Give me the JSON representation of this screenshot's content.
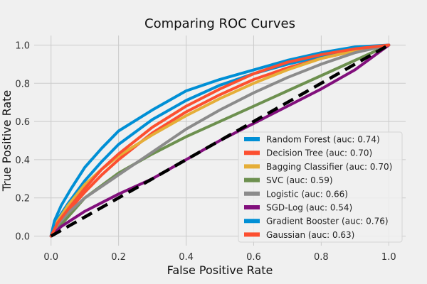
{
  "chart_data": {
    "type": "line",
    "title": "Comparing ROC Curves",
    "xlabel": "False Positive Rate",
    "ylabel": "True Positive Rate",
    "xlim": [
      -0.05,
      1.05
    ],
    "ylim": [
      -0.05,
      1.05
    ],
    "xticks": [
      0.0,
      0.2,
      0.4,
      0.6,
      0.8,
      1.0
    ],
    "yticks": [
      0.0,
      0.2,
      0.4,
      0.6,
      0.8,
      1.0
    ],
    "xtick_labels": [
      "0.0",
      "0.2",
      "0.4",
      "0.6",
      "0.8",
      "1.0"
    ],
    "ytick_labels": [
      "0.0",
      "0.2",
      "0.4",
      "0.6",
      "0.8",
      "1.0"
    ],
    "grid": true,
    "legend_position": "lower-right",
    "series": [
      {
        "name": "Random Forest (auc: 0.74)",
        "color": "#008fd5",
        "x": [
          0,
          0.02,
          0.05,
          0.1,
          0.15,
          0.2,
          0.3,
          0.4,
          0.5,
          0.6,
          0.7,
          0.8,
          0.9,
          1.0
        ],
        "y": [
          0,
          0.09,
          0.17,
          0.29,
          0.39,
          0.48,
          0.61,
          0.71,
          0.79,
          0.85,
          0.9,
          0.94,
          0.97,
          1.0
        ]
      },
      {
        "name": "Decision Tree (auc: 0.70)",
        "color": "#fc4f30",
        "x": [
          0,
          0.02,
          0.05,
          0.1,
          0.15,
          0.2,
          0.3,
          0.4,
          0.5,
          0.6,
          0.7,
          0.8,
          0.9,
          1.0
        ],
        "y": [
          0,
          0.06,
          0.13,
          0.23,
          0.32,
          0.4,
          0.54,
          0.65,
          0.74,
          0.82,
          0.88,
          0.93,
          0.97,
          1.0
        ]
      },
      {
        "name": "Bagging Classifier (auc: 0.70)",
        "color": "#e5ae38",
        "x": [
          0,
          0.02,
          0.05,
          0.1,
          0.15,
          0.2,
          0.3,
          0.4,
          0.5,
          0.6,
          0.7,
          0.8,
          0.9,
          1.0
        ],
        "y": [
          0,
          0.08,
          0.16,
          0.27,
          0.35,
          0.42,
          0.53,
          0.63,
          0.72,
          0.8,
          0.87,
          0.93,
          0.97,
          1.0
        ]
      },
      {
        "name": "SVC (auc: 0.59)",
        "color": "#6d904f",
        "x": [
          0,
          0.05,
          0.1,
          0.2,
          0.3,
          0.4,
          0.5,
          0.6,
          0.7,
          0.8,
          0.9,
          1.0
        ],
        "y": [
          0,
          0.1,
          0.2,
          0.33,
          0.43,
          0.52,
          0.6,
          0.68,
          0.76,
          0.84,
          0.92,
          1.0
        ]
      },
      {
        "name": "Logistic (auc: 0.66)",
        "color": "#8b8b8b",
        "x": [
          0,
          0.02,
          0.05,
          0.1,
          0.15,
          0.2,
          0.3,
          0.4,
          0.5,
          0.6,
          0.7,
          0.8,
          0.9,
          1.0
        ],
        "y": [
          0,
          0.06,
          0.12,
          0.2,
          0.26,
          0.32,
          0.44,
          0.56,
          0.66,
          0.75,
          0.83,
          0.9,
          0.96,
          1.0
        ]
      },
      {
        "name": "SGD-Log (auc: 0.54)",
        "color": "#810f7c",
        "x": [
          0,
          0.03,
          0.1,
          0.2,
          0.3,
          0.4,
          0.5,
          0.6,
          0.7,
          0.8,
          0.9,
          1.0
        ],
        "y": [
          0,
          0.05,
          0.13,
          0.22,
          0.3,
          0.4,
          0.5,
          0.59,
          0.68,
          0.77,
          0.87,
          1.0
        ]
      },
      {
        "name": "Gradient Booster (auc: 0.76)",
        "color": "#008fd5",
        "x": [
          0,
          0.01,
          0.03,
          0.06,
          0.1,
          0.15,
          0.2,
          0.3,
          0.4,
          0.5,
          0.6,
          0.7,
          0.8,
          0.9,
          1.0
        ],
        "y": [
          0,
          0.08,
          0.16,
          0.25,
          0.36,
          0.46,
          0.55,
          0.66,
          0.76,
          0.82,
          0.87,
          0.92,
          0.96,
          0.99,
          1.0
        ]
      },
      {
        "name": "Gaussian (auc: 0.63)",
        "color": "#fc4f30",
        "x": [
          0,
          0.02,
          0.05,
          0.1,
          0.15,
          0.2,
          0.3,
          0.4,
          0.5,
          0.6,
          0.7,
          0.8,
          0.9,
          1.0
        ],
        "y": [
          0,
          0.07,
          0.14,
          0.25,
          0.35,
          0.43,
          0.57,
          0.68,
          0.77,
          0.85,
          0.91,
          0.95,
          0.98,
          1.0
        ]
      }
    ],
    "reference_line": {
      "color": "#000000",
      "style": "dashed",
      "x": [
        0,
        1
      ],
      "y": [
        0,
        1
      ]
    }
  }
}
